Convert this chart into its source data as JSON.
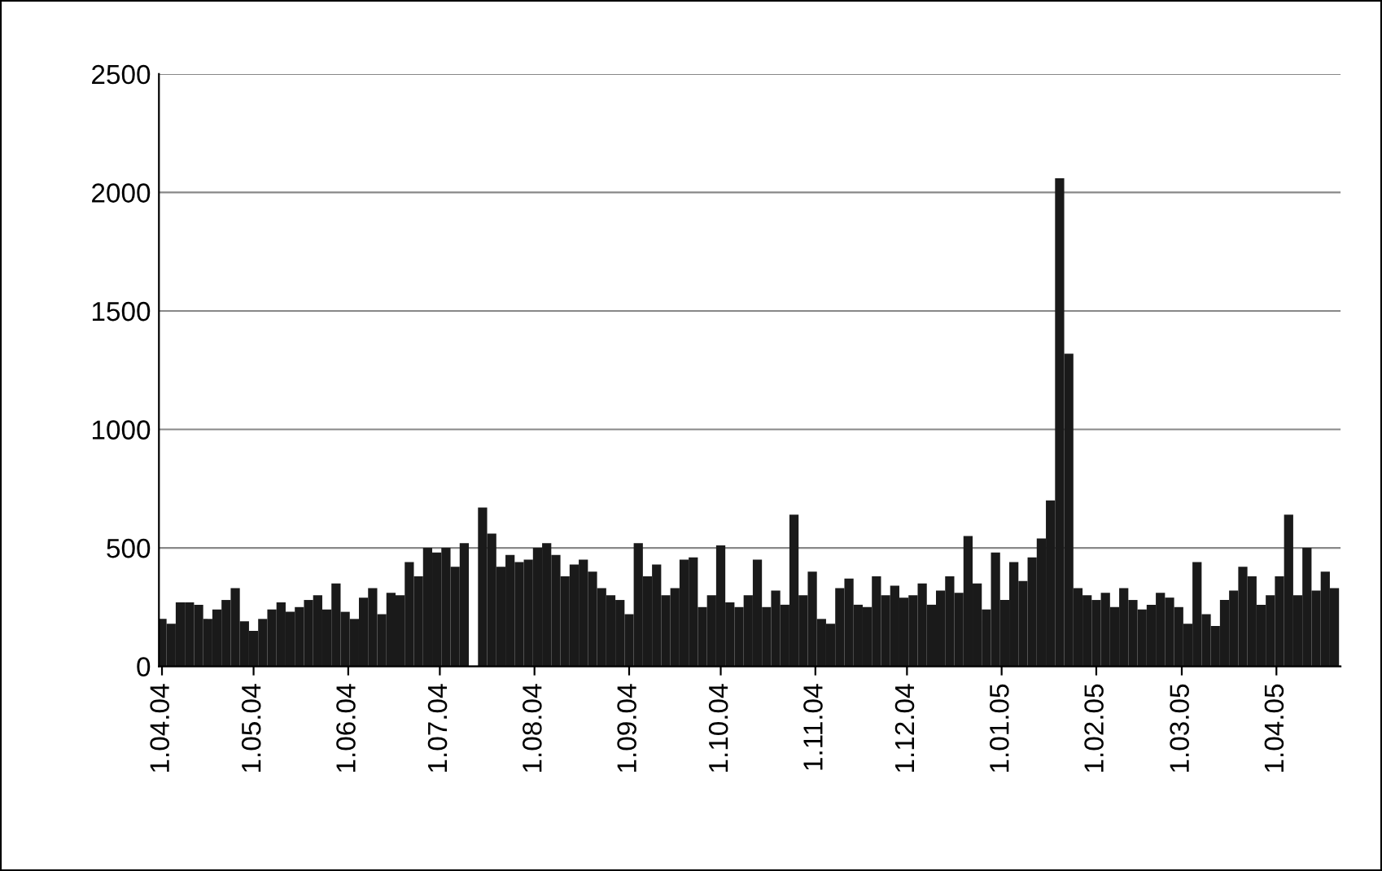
{
  "chart_data": {
    "type": "bar",
    "x": [
      "2004-04-01",
      "2004-04-04",
      "2004-04-07",
      "2004-04-10",
      "2004-04-13",
      "2004-04-16",
      "2004-04-19",
      "2004-04-22",
      "2004-04-25",
      "2004-04-28",
      "2004-05-01",
      "2004-05-04",
      "2004-05-07",
      "2004-05-10",
      "2004-05-13",
      "2004-05-16",
      "2004-05-19",
      "2004-05-22",
      "2004-05-25",
      "2004-05-28",
      "2004-05-31",
      "2004-06-03",
      "2004-06-06",
      "2004-06-09",
      "2004-06-12",
      "2004-06-15",
      "2004-06-18",
      "2004-06-21",
      "2004-06-24",
      "2004-06-27",
      "2004-06-30",
      "2004-07-03",
      "2004-07-06",
      "2004-07-09",
      "2004-07-12",
      "2004-07-15",
      "2004-07-18",
      "2004-07-21",
      "2004-07-24",
      "2004-07-27",
      "2004-07-30",
      "2004-08-02",
      "2004-08-05",
      "2004-08-08",
      "2004-08-11",
      "2004-08-14",
      "2004-08-17",
      "2004-08-20",
      "2004-08-23",
      "2004-08-26",
      "2004-08-29",
      "2004-09-01",
      "2004-09-04",
      "2004-09-07",
      "2004-09-10",
      "2004-09-13",
      "2004-09-16",
      "2004-09-19",
      "2004-09-22",
      "2004-09-25",
      "2004-09-28",
      "2004-10-01",
      "2004-10-04",
      "2004-10-07",
      "2004-10-10",
      "2004-10-13",
      "2004-10-16",
      "2004-10-19",
      "2004-10-22",
      "2004-10-25",
      "2004-10-28",
      "2004-10-31",
      "2004-11-03",
      "2004-11-06",
      "2004-11-09",
      "2004-11-12",
      "2004-11-15",
      "2004-11-18",
      "2004-11-21",
      "2004-11-24",
      "2004-11-27",
      "2004-11-30",
      "2004-12-03",
      "2004-12-06",
      "2004-12-09",
      "2004-12-12",
      "2004-12-15",
      "2004-12-18",
      "2004-12-21",
      "2004-12-24",
      "2004-12-27",
      "2004-12-30",
      "2005-01-02",
      "2005-01-05",
      "2005-01-08",
      "2005-01-11",
      "2005-01-14",
      "2005-01-17",
      "2005-01-20",
      "2005-01-23",
      "2005-01-26",
      "2005-01-29",
      "2005-02-01",
      "2005-02-04",
      "2005-02-07",
      "2005-02-10",
      "2005-02-13",
      "2005-02-16",
      "2005-02-19",
      "2005-02-22",
      "2005-02-25",
      "2005-02-28",
      "2005-03-03",
      "2005-03-06",
      "2005-03-09",
      "2005-03-12",
      "2005-03-15",
      "2005-03-18",
      "2005-03-21",
      "2005-03-24",
      "2005-03-27",
      "2005-03-30",
      "2005-04-02",
      "2005-04-05",
      "2005-04-08",
      "2005-04-11",
      "2005-04-14",
      "2005-04-17",
      "2005-04-20"
    ],
    "series": [
      {
        "color": "#1a1a1a",
        "values": [
          200,
          180,
          270,
          270,
          260,
          200,
          240,
          280,
          330,
          190,
          150,
          200,
          240,
          270,
          230,
          250,
          280,
          300,
          240,
          350,
          230,
          200,
          290,
          330,
          220,
          310,
          300,
          440,
          380,
          500,
          480,
          500,
          420,
          520,
          0,
          670,
          560,
          420,
          470,
          440,
          450,
          500,
          520,
          470,
          380,
          430,
          450,
          400,
          330,
          300,
          280,
          220,
          520,
          380,
          430,
          300,
          330,
          450,
          460,
          250,
          300,
          510,
          270,
          250,
          300,
          450,
          250,
          320,
          260,
          640,
          300,
          400,
          200,
          180,
          330,
          370,
          260,
          250,
          380,
          300,
          340,
          290,
          300,
          350,
          260,
          320,
          380,
          310,
          550,
          350,
          240,
          480,
          280,
          440,
          360,
          460,
          540,
          700,
          2060,
          1320,
          330,
          300,
          280,
          310,
          250,
          330,
          280,
          240,
          260,
          310,
          290,
          250,
          180,
          440,
          220,
          170,
          280,
          320,
          420,
          380,
          260,
          300,
          380,
          640,
          300,
          500,
          320,
          400,
          330
        ]
      }
    ],
    "xlim": [
      "2004-03-31",
      "2005-04-22"
    ],
    "xticks": [
      {
        "value": "2004-04-01",
        "label": "1.04.04"
      },
      {
        "value": "2004-05-01",
        "label": "1.05.04"
      },
      {
        "value": "2004-06-01",
        "label": "1.06.04"
      },
      {
        "value": "2004-07-01",
        "label": "1.07.04"
      },
      {
        "value": "2004-08-01",
        "label": "1.08.04"
      },
      {
        "value": "2004-09-01",
        "label": "1.09.04"
      },
      {
        "value": "2004-10-01",
        "label": "1.10.04"
      },
      {
        "value": "2004-11-01",
        "label": "1.11.04"
      },
      {
        "value": "2004-12-01",
        "label": "1.12.04"
      },
      {
        "value": "2005-01-01",
        "label": "1.01.05"
      },
      {
        "value": "2005-02-01",
        "label": "1.02.05"
      },
      {
        "value": "2005-03-01",
        "label": "1.03.05"
      },
      {
        "value": "2005-04-01",
        "label": "1.04.05"
      }
    ],
    "ylim": [
      0,
      2500
    ],
    "yticks": [
      0,
      500,
      1000,
      1500,
      2000,
      2500
    ],
    "grid": "y",
    "legend": false
  }
}
